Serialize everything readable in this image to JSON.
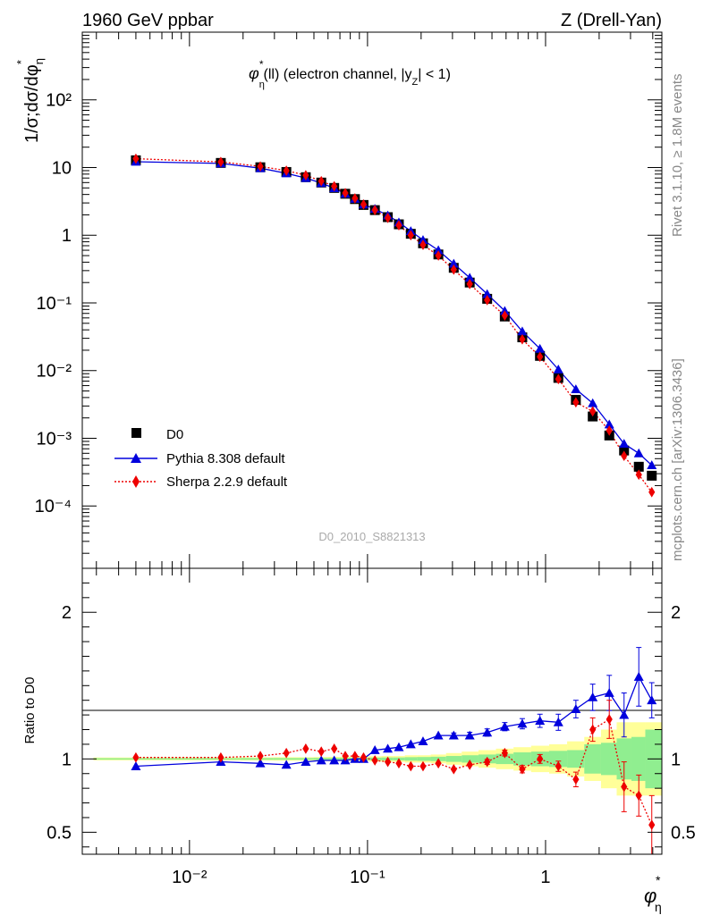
{
  "header": {
    "left": "1960 GeV ppbar",
    "right": "Z (Drell-Yan)",
    "side_top": "Rivet 3.1.10, ≥ 1.8M events",
    "side_bottom": "mcplots.cern.ch [arXiv:1306.3436]"
  },
  "chart_data": [
    {
      "type": "scatter",
      "title": "φ*η(ll) (electron channel, |yZ| < 1)",
      "ylabel": "1/σ;dσ/dφ*η",
      "xlabel": "φ*η",
      "xscale": "log",
      "yscale": "log",
      "xlim": [
        0.0025,
        4.5
      ],
      "ylim": [
        1.2e-05,
        1000
      ],
      "grid": false,
      "legend_position": "bottom-left",
      "analysis_label": "D0_2010_S8821313",
      "x_tick_labels": [
        "10⁻²",
        "10⁻¹",
        "1"
      ],
      "y_tick_labels": [
        "10⁻⁴",
        "10⁻³",
        "10⁻²",
        "10⁻¹",
        "1",
        "10",
        "10²"
      ],
      "x": [
        0.005,
        0.015,
        0.025,
        0.035,
        0.045,
        0.055,
        0.065,
        0.075,
        0.085,
        0.095,
        0.11,
        0.13,
        0.15,
        0.175,
        0.205,
        0.25,
        0.305,
        0.375,
        0.47,
        0.59,
        0.74,
        0.93,
        1.18,
        1.48,
        1.84,
        2.28,
        2.76,
        3.34,
        3.95
      ],
      "series": [
        {
          "name": "D0",
          "color": "#000000",
          "marker": "square",
          "values": [
            12.8,
            11.7,
            10.1,
            8.6,
            7.2,
            6.0,
            5.0,
            4.1,
            3.42,
            2.8,
            2.35,
            1.85,
            1.45,
            1.05,
            0.76,
            0.52,
            0.33,
            0.2,
            0.115,
            0.063,
            0.031,
            0.0165,
            0.0078,
            0.0037,
            0.0021,
            0.0011,
            0.00066,
            0.00038,
            0.00028
          ]
        },
        {
          "name": "Pythia 8.308 default",
          "color": "#0000dd",
          "marker": "triangle",
          "values": [
            12.2,
            11.5,
            9.8,
            8.2,
            7.0,
            5.9,
            4.95,
            4.1,
            3.45,
            2.85,
            2.45,
            1.96,
            1.55,
            1.15,
            0.85,
            0.6,
            0.38,
            0.235,
            0.135,
            0.076,
            0.038,
            0.021,
            0.0104,
            0.0053,
            0.0033,
            0.0016,
            0.00083,
            0.0006,
            0.0004
          ]
        },
        {
          "name": "Sherpa 2.2.9 default",
          "color": "#ee0000",
          "marker": "diamond",
          "values": [
            13.5,
            12.1,
            10.4,
            9.0,
            7.7,
            6.3,
            5.3,
            4.2,
            3.5,
            2.85,
            2.35,
            1.8,
            1.4,
            1.0,
            0.72,
            0.5,
            0.31,
            0.19,
            0.11,
            0.065,
            0.029,
            0.016,
            0.0075,
            0.0034,
            0.0025,
            0.0013,
            0.00055,
            0.00029,
            0.00016
          ]
        }
      ]
    },
    {
      "type": "scatter",
      "ylabel": "Ratio to D0",
      "xlabel": "φ*η",
      "xscale": "log",
      "xlim": [
        0.0025,
        4.5
      ],
      "ylim": [
        0.35,
        2.3
      ],
      "y_tick_labels": [
        "0.5",
        "1",
        "2"
      ],
      "band_colors": {
        "inner": "#90ee90",
        "outer": "#ffff99"
      },
      "band_inner": [
        0.005,
        0.005,
        0.006,
        0.006,
        0.006,
        0.007,
        0.007,
        0.008,
        0.008,
        0.008,
        0.009,
        0.01,
        0.01,
        0.012,
        0.013,
        0.015,
        0.02,
        0.025,
        0.03,
        0.035,
        0.045,
        0.05,
        0.055,
        0.06,
        0.1,
        0.11,
        0.14,
        0.15,
        0.2
      ],
      "band_outer": [
        0.01,
        0.01,
        0.011,
        0.012,
        0.012,
        0.013,
        0.014,
        0.015,
        0.016,
        0.016,
        0.018,
        0.02,
        0.02,
        0.025,
        0.025,
        0.03,
        0.04,
        0.05,
        0.06,
        0.07,
        0.08,
        0.09,
        0.1,
        0.12,
        0.15,
        0.2,
        0.25,
        0.25,
        0.25
      ],
      "series": [
        {
          "name": "Pythia 8.308 default",
          "color": "#0000dd",
          "values": [
            0.95,
            0.98,
            0.97,
            0.96,
            0.98,
            0.99,
            0.99,
            0.99,
            1.0,
            1.0,
            1.06,
            1.07,
            1.08,
            1.1,
            1.12,
            1.16,
            1.16,
            1.16,
            1.18,
            1.22,
            1.24,
            1.26,
            1.25,
            1.34,
            1.42,
            1.45,
            1.3,
            1.56,
            1.4
          ],
          "errors": [
            0.005,
            0.005,
            0.005,
            0.005,
            0.005,
            0.005,
            0.005,
            0.006,
            0.006,
            0.006,
            0.007,
            0.008,
            0.009,
            0.01,
            0.011,
            0.014,
            0.017,
            0.022,
            0.025,
            0.028,
            0.035,
            0.045,
            0.055,
            0.06,
            0.09,
            0.12,
            0.15,
            0.2,
            0.12
          ]
        },
        {
          "name": "Sherpa 2.2.9 default",
          "color": "#ee0000",
          "values": [
            1.01,
            1.01,
            1.02,
            1.04,
            1.07,
            1.05,
            1.07,
            1.02,
            1.02,
            1.01,
            0.99,
            0.98,
            0.97,
            0.95,
            0.95,
            0.97,
            0.93,
            0.96,
            0.98,
            1.04,
            0.93,
            1.0,
            0.95,
            0.86,
            1.2,
            1.27,
            0.81,
            0.75,
            0.55
          ],
          "errors": [
            0.005,
            0.005,
            0.005,
            0.005,
            0.005,
            0.005,
            0.006,
            0.006,
            0.006,
            0.006,
            0.007,
            0.008,
            0.008,
            0.009,
            0.01,
            0.011,
            0.012,
            0.014,
            0.017,
            0.02,
            0.025,
            0.03,
            0.035,
            0.05,
            0.08,
            0.13,
            0.17,
            0.14,
            0.2
          ]
        }
      ]
    }
  ]
}
